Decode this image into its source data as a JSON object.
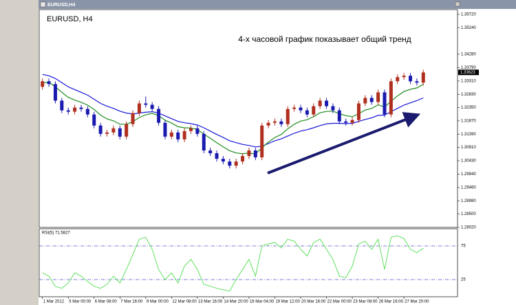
{
  "window_title": "EURUSD,H4",
  "chart_data": [
    {
      "type": "candlestick",
      "title": "EURUSD, H4",
      "annotation": "4-х часовой график показывает общий тренд",
      "open": [
        1.331,
        1.333,
        1.332,
        1.326,
        1.3225,
        1.322,
        1.3235,
        1.323,
        1.321,
        1.317,
        1.314,
        1.3145,
        1.316,
        1.313,
        1.3175,
        1.3215,
        1.325,
        1.3245,
        1.323,
        1.318,
        1.313,
        1.3145,
        1.312,
        1.315,
        1.316,
        1.314,
        1.308,
        1.307,
        1.305,
        1.304,
        1.3025,
        1.304,
        1.306,
        1.308,
        1.3055,
        1.317,
        1.318,
        1.3185,
        1.3175,
        1.323,
        1.3235,
        1.3225,
        1.321,
        1.324,
        1.326,
        1.324,
        1.3225,
        1.3185,
        1.318,
        1.319,
        1.325,
        1.327,
        1.3255,
        1.329,
        1.321,
        1.333,
        1.3345,
        1.335,
        1.333,
        1.3325
      ],
      "high": [
        1.334,
        1.334,
        1.333,
        1.327,
        1.3235,
        1.3245,
        1.3245,
        1.324,
        1.322,
        1.318,
        1.3155,
        1.317,
        1.317,
        1.3185,
        1.3225,
        1.326,
        1.3275,
        1.3255,
        1.324,
        1.319,
        1.3155,
        1.3155,
        1.316,
        1.317,
        1.317,
        1.315,
        1.309,
        1.308,
        1.306,
        1.305,
        1.305,
        1.307,
        1.309,
        1.309,
        1.318,
        1.319,
        1.3195,
        1.3195,
        1.324,
        1.3245,
        1.3245,
        1.3235,
        1.325,
        1.327,
        1.327,
        1.325,
        1.3235,
        1.3195,
        1.32,
        1.326,
        1.328,
        1.328,
        1.33,
        1.33,
        1.334,
        1.3355,
        1.336,
        1.336,
        1.334,
        1.3372
      ],
      "low": [
        1.33,
        1.331,
        1.325,
        1.3215,
        1.321,
        1.321,
        1.322,
        1.32,
        1.316,
        1.313,
        1.313,
        1.3135,
        1.312,
        1.312,
        1.3165,
        1.3205,
        1.3235,
        1.322,
        1.317,
        1.312,
        1.312,
        1.311,
        1.311,
        1.314,
        1.313,
        1.307,
        1.306,
        1.304,
        1.303,
        1.3015,
        1.3015,
        1.303,
        1.305,
        1.3045,
        1.3045,
        1.316,
        1.317,
        1.3165,
        1.3165,
        1.322,
        1.3215,
        1.32,
        1.32,
        1.323,
        1.323,
        1.3215,
        1.3175,
        1.317,
        1.317,
        1.318,
        1.324,
        1.3245,
        1.3245,
        1.32,
        1.32,
        1.332,
        1.3335,
        1.332,
        1.3315,
        1.3315
      ],
      "close": [
        1.333,
        1.332,
        1.326,
        1.3225,
        1.322,
        1.3235,
        1.323,
        1.321,
        1.317,
        1.314,
        1.3145,
        1.316,
        1.313,
        1.3175,
        1.3215,
        1.325,
        1.3245,
        1.323,
        1.318,
        1.313,
        1.3145,
        1.312,
        1.315,
        1.316,
        1.314,
        1.308,
        1.307,
        1.305,
        1.304,
        1.3025,
        1.304,
        1.306,
        1.308,
        1.3055,
        1.317,
        1.318,
        1.3185,
        1.3175,
        1.323,
        1.3235,
        1.3225,
        1.321,
        1.324,
        1.326,
        1.324,
        1.3225,
        1.3185,
        1.318,
        1.319,
        1.325,
        1.327,
        1.3255,
        1.329,
        1.321,
        1.333,
        1.3345,
        1.335,
        1.333,
        1.3325,
        1.3362
      ],
      "up_color": "#b03020",
      "down_color": "#1a1ab0",
      "overlays": [
        {
          "color": "#1515d8",
          "values": [
            1.3355,
            1.335,
            1.334,
            1.3325,
            1.331,
            1.33,
            1.329,
            1.328,
            1.3265,
            1.325,
            1.324,
            1.3232,
            1.3222,
            1.3215,
            1.3212,
            1.3215,
            1.3218,
            1.322,
            1.3215,
            1.3205,
            1.3195,
            1.3185,
            1.318,
            1.3177,
            1.3172,
            1.3162,
            1.315,
            1.3138,
            1.3127,
            1.3115,
            1.3108,
            1.3102,
            1.3098,
            1.3093,
            1.3095,
            1.3105,
            1.3115,
            1.3122,
            1.3132,
            1.3142,
            1.315,
            1.3155,
            1.3162,
            1.317,
            1.3176,
            1.3178,
            1.3178,
            1.3177,
            1.3178,
            1.3185,
            1.3192,
            1.3198,
            1.3207,
            1.3208,
            1.322,
            1.3232,
            1.3244,
            1.3252,
            1.326,
            1.327
          ]
        },
        {
          "color": "#1e8c1e",
          "values": [
            1.3325,
            1.3326,
            1.331,
            1.329,
            1.3272,
            1.3262,
            1.3254,
            1.3244,
            1.3228,
            1.3208,
            1.3194,
            1.3187,
            1.3175,
            1.3175,
            1.3184,
            1.3199,
            1.3209,
            1.3214,
            1.3206,
            1.3189,
            1.3179,
            1.3166,
            1.3162,
            1.3161,
            1.3156,
            1.3139,
            1.3124,
            1.3108,
            1.3093,
            1.3079,
            1.3071,
            1.3068,
            1.3071,
            1.3067,
            1.309,
            1.311,
            1.3127,
            1.3138,
            1.3158,
            1.3175,
            1.3186,
            1.3191,
            1.3202,
            1.3216,
            1.3221,
            1.3222,
            1.3213,
            1.3206,
            1.3202,
            1.3213,
            1.3226,
            1.3232,
            1.3245,
            1.3237,
            1.3258,
            1.3277,
            1.3293,
            1.3301,
            1.3306,
            1.3319
          ]
        }
      ],
      "last_price": 1.33623,
      "ylim": [
        1.2802,
        1.3589
      ],
      "yticks": [
        {
          "value": 1.3572,
          "label": "1.35720"
        },
        {
          "value": 1.3524,
          "label": "1.35240"
        },
        {
          "value": 1.3428,
          "label": "1.34280"
        },
        {
          "value": 1.3379,
          "label": "1.33790"
        },
        {
          "value": 1.3331,
          "label": "1.33310"
        },
        {
          "value": 1.3283,
          "label": "1.32830"
        },
        {
          "value": 1.3235,
          "label": "1.32350"
        },
        {
          "value": 1.3187,
          "label": "1.31870"
        },
        {
          "value": 1.3139,
          "label": "1.31390"
        },
        {
          "value": 1.3091,
          "label": "1.30910"
        },
        {
          "value": 1.3043,
          "label": "1.30430"
        },
        {
          "value": 1.2994,
          "label": "1.29940"
        },
        {
          "value": 1.2946,
          "label": "1.29460"
        },
        {
          "value": 1.2898,
          "label": "1.28980"
        },
        {
          "value": 1.285,
          "label": "1.28500"
        },
        {
          "value": 1.2802,
          "label": "1.28020"
        }
      ],
      "xlim": [
        -0.5,
        64.3
      ],
      "xticks": [
        {
          "value": 0,
          "label": "1 Mar 2012"
        },
        {
          "value": 4,
          "label": "5 Mar 00:00"
        },
        {
          "value": 8,
          "label": "6 Mar 08:00"
        },
        {
          "value": 12,
          "label": "7 Mar 16:00"
        },
        {
          "value": 16,
          "label": "9 Mar 00:00"
        },
        {
          "value": 20,
          "label": "12 Mar 08:00"
        },
        {
          "value": 24,
          "label": "13 Mar 16:00"
        },
        {
          "value": 28,
          "label": "14 Mar 20:00"
        },
        {
          "value": 32,
          "label": "16 Mar 04:00"
        },
        {
          "value": 36,
          "label": "19 Mar 12:00"
        },
        {
          "value": 40,
          "label": "20 Mar 16:00"
        },
        {
          "value": 44,
          "label": "22 Mar 00:00"
        },
        {
          "value": 48,
          "label": "23 Mar 08:00"
        },
        {
          "value": 52,
          "label": "26 Mar 16:00"
        },
        {
          "value": 56,
          "label": "27 Mar 20:00"
        }
      ]
    },
    {
      "type": "line",
      "title": "RSI(5) 71.5827",
      "color": "#5ee05e",
      "level_color": "#5050c8",
      "values": [
        35,
        30,
        15,
        12,
        20,
        35,
        30,
        22,
        15,
        12,
        18,
        30,
        20,
        40,
        62,
        85,
        88,
        70,
        40,
        25,
        35,
        20,
        45,
        55,
        40,
        18,
        15,
        12,
        10,
        8,
        25,
        40,
        55,
        30,
        75,
        78,
        80,
        72,
        85,
        82,
        70,
        60,
        80,
        85,
        70,
        55,
        30,
        28,
        45,
        78,
        82,
        70,
        85,
        40,
        88,
        90,
        86,
        70,
        65,
        71.5827
      ],
      "ylim": [
        0,
        100
      ],
      "yticks": [
        25,
        75
      ]
    }
  ]
}
